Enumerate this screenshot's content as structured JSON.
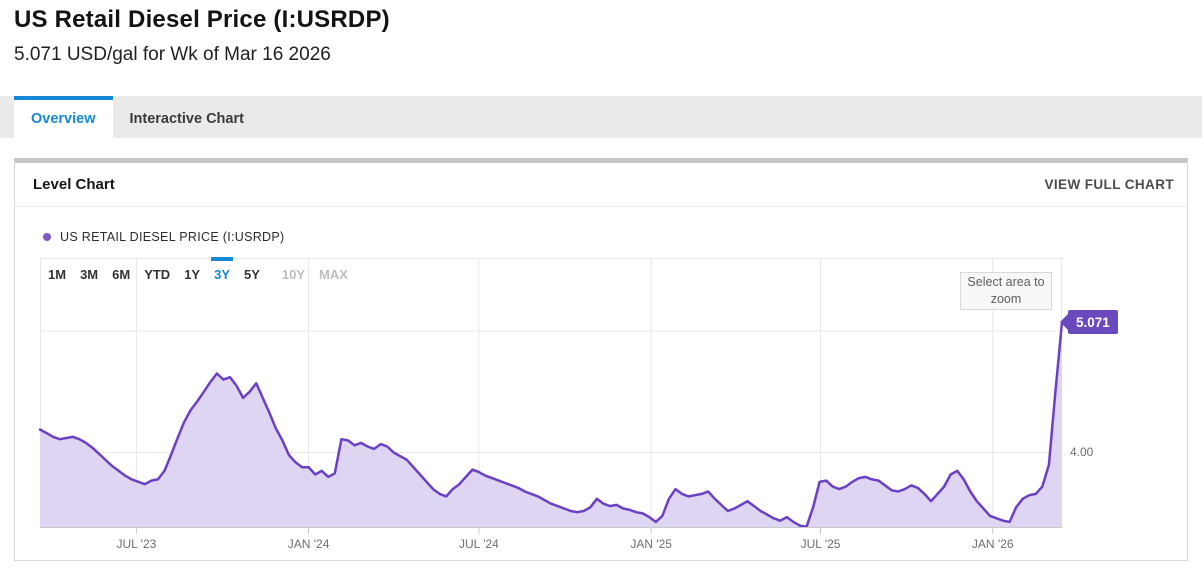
{
  "page": {
    "title": "US Retail Diesel Price (I:USRDP)",
    "subtitle": "5.071 USD/gal for Wk of Mar 16 2026"
  },
  "tabs": [
    {
      "label": "Overview",
      "active": true
    },
    {
      "label": "Interactive Chart",
      "active": false
    }
  ],
  "card": {
    "title": "Level Chart",
    "action_label": "VIEW FULL CHART"
  },
  "legend": {
    "label": "US RETAIL DIESEL PRICE (I:USRDP)"
  },
  "range_selector": {
    "buttons": [
      "1M",
      "3M",
      "6M",
      "YTD",
      "1Y",
      "3Y",
      "5Y",
      "10Y",
      "MAX"
    ],
    "active": "3Y",
    "disabled": [
      "10Y",
      "MAX"
    ]
  },
  "chart": {
    "zoom_hint": "Select area to zoom",
    "last_value_label": "5.071",
    "y_axis_label": "4.00"
  },
  "colors": {
    "accent_blue": "#1787d8",
    "line_purple": "#6b40c6",
    "fill_lavender": "#ded5f2",
    "badge_purple": "#6a49bf",
    "legend_dot": "#7b57c8"
  },
  "chart_data": {
    "type": "area",
    "title": "US RETAIL DIESEL PRICE (I:USRDP)",
    "unit": "USD/gal",
    "x_range": [
      "2023-03-20",
      "2026-03-16"
    ],
    "ylim": [
      3.38,
      5.6
    ],
    "grid": true,
    "legend_position": "top-left",
    "last_value": 5.071,
    "last_value_date": "Wk of Mar 16 2026",
    "y_ticks": [
      {
        "value": 4.0,
        "label": "4.00"
      },
      {
        "value": 5.0,
        "label": ""
      }
    ],
    "x_ticks": [
      {
        "date": "2023-07-01",
        "label": "JUL '23"
      },
      {
        "date": "2024-01-01",
        "label": "JAN '24"
      },
      {
        "date": "2024-07-01",
        "label": "JUL '24"
      },
      {
        "date": "2025-01-01",
        "label": "JAN '25"
      },
      {
        "date": "2025-07-01",
        "label": "JUL '25"
      },
      {
        "date": "2026-01-01",
        "label": "JAN '26"
      }
    ],
    "series": [
      {
        "name": "US Retail Diesel Price (I:USRDP)",
        "points": [
          [
            "2023-03-20",
            4.19
          ],
          [
            "2023-03-27",
            4.16
          ],
          [
            "2023-04-03",
            4.13
          ],
          [
            "2023-04-10",
            4.11
          ],
          [
            "2023-04-17",
            4.12
          ],
          [
            "2023-04-24",
            4.13
          ],
          [
            "2023-05-01",
            4.11
          ],
          [
            "2023-05-08",
            4.08
          ],
          [
            "2023-05-15",
            4.04
          ],
          [
            "2023-05-22",
            3.99
          ],
          [
            "2023-05-29",
            3.94
          ],
          [
            "2023-06-05",
            3.89
          ],
          [
            "2023-06-12",
            3.85
          ],
          [
            "2023-06-19",
            3.81
          ],
          [
            "2023-06-26",
            3.78
          ],
          [
            "2023-07-03",
            3.76
          ],
          [
            "2023-07-10",
            3.74
          ],
          [
            "2023-07-17",
            3.77
          ],
          [
            "2023-07-24",
            3.78
          ],
          [
            "2023-07-31",
            3.85
          ],
          [
            "2023-08-07",
            3.98
          ],
          [
            "2023-08-14",
            4.12
          ],
          [
            "2023-08-21",
            4.25
          ],
          [
            "2023-08-28",
            4.35
          ],
          [
            "2023-09-04",
            4.42
          ],
          [
            "2023-09-11",
            4.5
          ],
          [
            "2023-09-18",
            4.58
          ],
          [
            "2023-09-25",
            4.65
          ],
          [
            "2023-10-02",
            4.6
          ],
          [
            "2023-10-09",
            4.62
          ],
          [
            "2023-10-16",
            4.55
          ],
          [
            "2023-10-23",
            4.45
          ],
          [
            "2023-10-30",
            4.5
          ],
          [
            "2023-11-06",
            4.57
          ],
          [
            "2023-11-13",
            4.45
          ],
          [
            "2023-11-20",
            4.33
          ],
          [
            "2023-11-27",
            4.2
          ],
          [
            "2023-12-04",
            4.1
          ],
          [
            "2023-12-11",
            3.98
          ],
          [
            "2023-12-18",
            3.92
          ],
          [
            "2023-12-25",
            3.88
          ],
          [
            "2024-01-01",
            3.88
          ],
          [
            "2024-01-08",
            3.82
          ],
          [
            "2024-01-15",
            3.85
          ],
          [
            "2024-01-22",
            3.8
          ],
          [
            "2024-01-29",
            3.83
          ],
          [
            "2024-02-05",
            4.11
          ],
          [
            "2024-02-12",
            4.1
          ],
          [
            "2024-02-19",
            4.06
          ],
          [
            "2024-02-26",
            4.08
          ],
          [
            "2024-03-04",
            4.05
          ],
          [
            "2024-03-11",
            4.03
          ],
          [
            "2024-03-18",
            4.07
          ],
          [
            "2024-03-25",
            4.05
          ],
          [
            "2024-04-01",
            4.0
          ],
          [
            "2024-04-08",
            3.97
          ],
          [
            "2024-04-15",
            3.94
          ],
          [
            "2024-04-22",
            3.88
          ],
          [
            "2024-04-29",
            3.82
          ],
          [
            "2024-05-06",
            3.76
          ],
          [
            "2024-05-13",
            3.7
          ],
          [
            "2024-05-20",
            3.66
          ],
          [
            "2024-05-27",
            3.64
          ],
          [
            "2024-06-03",
            3.7
          ],
          [
            "2024-06-10",
            3.74
          ],
          [
            "2024-06-17",
            3.8
          ],
          [
            "2024-06-24",
            3.86
          ],
          [
            "2024-07-01",
            3.84
          ],
          [
            "2024-07-08",
            3.81
          ],
          [
            "2024-07-15",
            3.79
          ],
          [
            "2024-07-22",
            3.77
          ],
          [
            "2024-07-29",
            3.75
          ],
          [
            "2024-08-05",
            3.73
          ],
          [
            "2024-08-12",
            3.71
          ],
          [
            "2024-08-19",
            3.68
          ],
          [
            "2024-08-26",
            3.66
          ],
          [
            "2024-09-02",
            3.64
          ],
          [
            "2024-09-09",
            3.61
          ],
          [
            "2024-09-16",
            3.58
          ],
          [
            "2024-09-23",
            3.56
          ],
          [
            "2024-09-30",
            3.54
          ],
          [
            "2024-10-07",
            3.52
          ],
          [
            "2024-10-14",
            3.51
          ],
          [
            "2024-10-21",
            3.52
          ],
          [
            "2024-10-28",
            3.55
          ],
          [
            "2024-11-04",
            3.62
          ],
          [
            "2024-11-11",
            3.58
          ],
          [
            "2024-11-18",
            3.56
          ],
          [
            "2024-11-25",
            3.57
          ],
          [
            "2024-12-02",
            3.54
          ],
          [
            "2024-12-09",
            3.53
          ],
          [
            "2024-12-16",
            3.51
          ],
          [
            "2024-12-23",
            3.5
          ],
          [
            "2024-12-30",
            3.47
          ],
          [
            "2025-01-06",
            3.43
          ],
          [
            "2025-01-13",
            3.48
          ],
          [
            "2025-01-20",
            3.62
          ],
          [
            "2025-01-27",
            3.7
          ],
          [
            "2025-02-03",
            3.66
          ],
          [
            "2025-02-10",
            3.64
          ],
          [
            "2025-02-17",
            3.65
          ],
          [
            "2025-02-24",
            3.66
          ],
          [
            "2025-03-03",
            3.68
          ],
          [
            "2025-03-10",
            3.62
          ],
          [
            "2025-03-17",
            3.57
          ],
          [
            "2025-03-24",
            3.52
          ],
          [
            "2025-03-31",
            3.54
          ],
          [
            "2025-04-07",
            3.57
          ],
          [
            "2025-04-14",
            3.6
          ],
          [
            "2025-04-21",
            3.56
          ],
          [
            "2025-04-28",
            3.52
          ],
          [
            "2025-05-05",
            3.49
          ],
          [
            "2025-05-12",
            3.46
          ],
          [
            "2025-05-19",
            3.44
          ],
          [
            "2025-05-26",
            3.47
          ],
          [
            "2025-06-02",
            3.43
          ],
          [
            "2025-06-09",
            3.4
          ],
          [
            "2025-06-16",
            3.39
          ],
          [
            "2025-06-23",
            3.55
          ],
          [
            "2025-06-30",
            3.76
          ],
          [
            "2025-07-07",
            3.77
          ],
          [
            "2025-07-14",
            3.72
          ],
          [
            "2025-07-21",
            3.7
          ],
          [
            "2025-07-28",
            3.72
          ],
          [
            "2025-08-04",
            3.76
          ],
          [
            "2025-08-11",
            3.79
          ],
          [
            "2025-08-18",
            3.8
          ],
          [
            "2025-08-25",
            3.78
          ],
          [
            "2025-09-01",
            3.77
          ],
          [
            "2025-09-08",
            3.73
          ],
          [
            "2025-09-15",
            3.69
          ],
          [
            "2025-09-22",
            3.68
          ],
          [
            "2025-09-29",
            3.7
          ],
          [
            "2025-10-06",
            3.73
          ],
          [
            "2025-10-13",
            3.71
          ],
          [
            "2025-10-20",
            3.66
          ],
          [
            "2025-10-27",
            3.6
          ],
          [
            "2025-11-03",
            3.66
          ],
          [
            "2025-11-10",
            3.72
          ],
          [
            "2025-11-17",
            3.82
          ],
          [
            "2025-11-24",
            3.85
          ],
          [
            "2025-12-01",
            3.78
          ],
          [
            "2025-12-08",
            3.68
          ],
          [
            "2025-12-15",
            3.6
          ],
          [
            "2025-12-22",
            3.54
          ],
          [
            "2025-12-29",
            3.48
          ],
          [
            "2026-01-05",
            3.46
          ],
          [
            "2026-01-12",
            3.44
          ],
          [
            "2026-01-19",
            3.43
          ],
          [
            "2026-01-26",
            3.55
          ],
          [
            "2026-02-02",
            3.62
          ],
          [
            "2026-02-09",
            3.65
          ],
          [
            "2026-02-16",
            3.66
          ],
          [
            "2026-02-23",
            3.72
          ],
          [
            "2026-03-02",
            3.9
          ],
          [
            "2026-03-09",
            4.5
          ],
          [
            "2026-03-16",
            5.071
          ]
        ]
      }
    ]
  }
}
